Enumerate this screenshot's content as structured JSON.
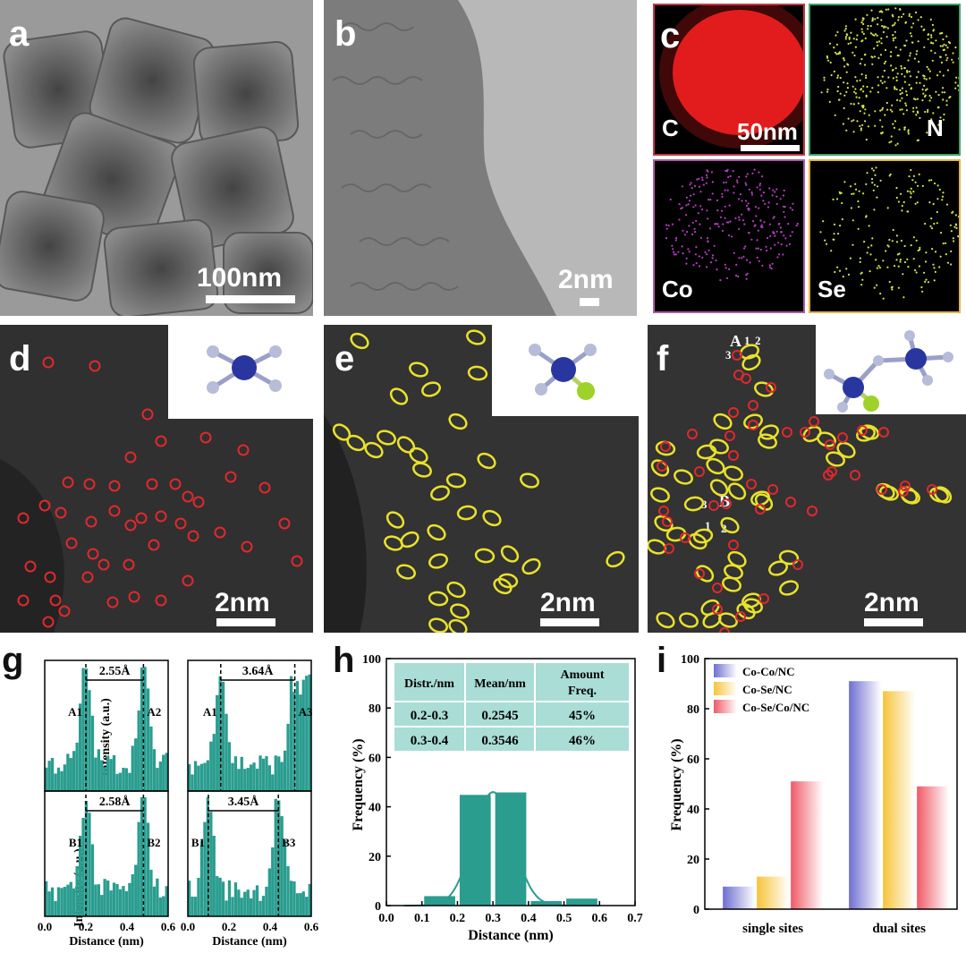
{
  "panels": {
    "a": {
      "label": "a",
      "scale": "100nm"
    },
    "b": {
      "label": "b",
      "scale": "2nm"
    },
    "c": {
      "label": "c",
      "scale": "50nm",
      "elements": [
        "C",
        "N",
        "Co",
        "Se"
      ],
      "colors": {
        "C": "#ff2020",
        "N": "#d7e24a",
        "Co": "#b93bc5",
        "Se": "#d6e44a"
      },
      "borders": {
        "C": "#c9344a",
        "N": "#3fa46a",
        "Co": "#b05aa8",
        "Se": "#e2b448"
      }
    },
    "d": {
      "label": "d",
      "scale": "2nm"
    },
    "e": {
      "label": "e",
      "scale": "2nm"
    },
    "f": {
      "label": "f",
      "scale": "2nm",
      "annotations": {
        "A": "A",
        "B": "B",
        "n1": "1",
        "n2": "2",
        "n3": "3"
      }
    },
    "g": {
      "label": "g"
    },
    "h": {
      "label": "h"
    },
    "i": {
      "label": "i"
    }
  },
  "colors": {
    "teal": "#2a9d8f",
    "red_circle": "#e0282e",
    "yellow_ellipse": "#e9e22a"
  },
  "chart_data": [
    {
      "type": "bar",
      "id": "g-intensity-profiles",
      "ylabel": "Intensity (a.u.)",
      "xlabel": "Distance (nm)",
      "xlim": [
        0,
        0.6
      ],
      "x_ticks": [
        "0.0",
        "0.2",
        "0.4",
        "0.6"
      ],
      "subplots": [
        {
          "name": "A1-A2",
          "peaks": [
            "A1",
            "A2"
          ],
          "distance_label": "2.55Å",
          "marker_x": [
            0.2,
            0.48
          ]
        },
        {
          "name": "A1-A3",
          "peaks": [
            "A1",
            "A3"
          ],
          "distance_label": "3.64Å",
          "marker_x": [
            0.16,
            0.52
          ]
        },
        {
          "name": "B1-B2",
          "peaks": [
            "B1",
            "B2"
          ],
          "distance_label": "2.58Å",
          "marker_x": [
            0.2,
            0.48
          ]
        },
        {
          "name": "B1-B3",
          "peaks": [
            "B1",
            "B3"
          ],
          "distance_label": "3.45Å",
          "marker_x": [
            0.1,
            0.44
          ]
        }
      ]
    },
    {
      "type": "bar",
      "id": "h-distance-histogram",
      "xlabel": "Distance (nm)",
      "ylabel": "Frequency (%)",
      "xlim": [
        0.0,
        0.7
      ],
      "ylim": [
        0,
        100
      ],
      "x_ticks": [
        "0.0",
        "0.1",
        "0.2",
        "0.3",
        "0.4",
        "0.5",
        "0.6",
        "0.7"
      ],
      "y_ticks": [
        "0",
        "20",
        "40",
        "60",
        "80",
        "100"
      ],
      "bins": [
        {
          "center": 0.15,
          "value": 4
        },
        {
          "center": 0.25,
          "value": 45
        },
        {
          "center": 0.35,
          "value": 46
        },
        {
          "center": 0.45,
          "value": 2
        },
        {
          "center": 0.55,
          "value": 3
        }
      ],
      "fit": {
        "type": "gaussian",
        "mu": 0.3,
        "sigma": 0.055,
        "peak": 46
      },
      "table": {
        "headers": [
          "Distr./nm",
          "Mean/nm",
          "Amount Freq."
        ],
        "rows": [
          [
            "0.2-0.3",
            "0.2545",
            "45%"
          ],
          [
            "0.3-0.4",
            "0.3546",
            "46%"
          ]
        ]
      }
    },
    {
      "type": "bar",
      "id": "i-site-frequency",
      "ylabel": "Frequency (%)",
      "ylim": [
        0,
        100
      ],
      "y_ticks": [
        "0",
        "20",
        "40",
        "60",
        "80",
        "100"
      ],
      "categories": [
        "single sites",
        "dual sites"
      ],
      "series": [
        {
          "name": "Co-Co/NC",
          "color": "#6f6fd2",
          "values": [
            9,
            91
          ]
        },
        {
          "name": "Co-Se/NC",
          "color": "#f6c43a",
          "values": [
            13,
            87
          ]
        },
        {
          "name": "Co-Se/Co/NC",
          "color": "#ef5a67",
          "values": [
            51,
            49
          ]
        }
      ]
    }
  ]
}
